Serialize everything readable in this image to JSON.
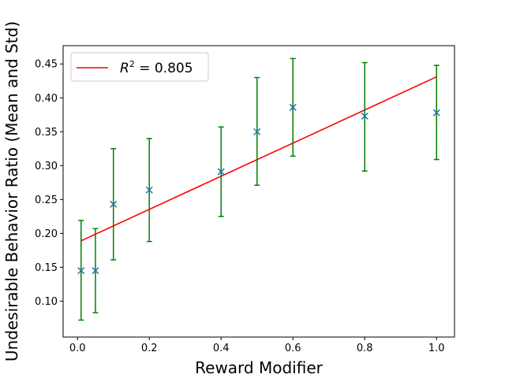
{
  "chart_data": {
    "type": "scatter",
    "xlabel": "Reward Modifier",
    "ylabel": "Undesirable Behavior Ratio (Mean and Std)",
    "xlim": [
      -0.04,
      1.05
    ],
    "ylim": [
      0.047,
      0.477
    ],
    "x_ticks": [
      0.0,
      0.2,
      0.4,
      0.6,
      0.8,
      1.0
    ],
    "x_tick_labels": [
      "0.0",
      "0.2",
      "0.4",
      "0.6",
      "0.8",
      "1.0"
    ],
    "y_ticks": [
      0.1,
      0.15,
      0.2,
      0.25,
      0.3,
      0.35,
      0.4,
      0.45
    ],
    "y_tick_labels": [
      "0.10",
      "0.15",
      "0.20",
      "0.25",
      "0.30",
      "0.35",
      "0.40",
      "0.45"
    ],
    "grid": false,
    "legend_position": "top-left",
    "points": {
      "marker": "x",
      "color": "#1f77b4",
      "x": [
        0.01,
        0.05,
        0.1,
        0.2,
        0.4,
        0.5,
        0.6,
        0.8,
        1.0
      ],
      "y": [
        0.145,
        0.145,
        0.243,
        0.264,
        0.291,
        0.35,
        0.386,
        0.373,
        0.378
      ],
      "err_low": [
        0.072,
        0.083,
        0.161,
        0.188,
        0.225,
        0.271,
        0.314,
        0.292,
        0.309
      ],
      "err_high": [
        0.219,
        0.207,
        0.325,
        0.34,
        0.357,
        0.43,
        0.458,
        0.452,
        0.448
      ],
      "err_color": "#008000"
    },
    "fit_line": {
      "label_prefix": "R",
      "label_superscript": "2",
      "label_value": " = 0.805",
      "color": "#ff0000",
      "x": [
        0.01,
        1.0
      ],
      "y": [
        0.189,
        0.431
      ]
    }
  }
}
